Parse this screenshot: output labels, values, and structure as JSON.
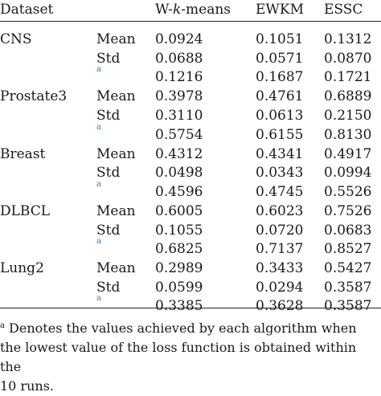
{
  "table": {
    "headers": {
      "dataset": "Dataset",
      "col1": "W-k-means",
      "col2": "EWKM",
      "col3": "ESSC"
    },
    "header_parts": {
      "w": "W-",
      "k": "k",
      "means": "-means"
    },
    "groups": [
      {
        "name": "CNS",
        "rows": [
          {
            "stat": "Mean",
            "sup": "",
            "values": [
              "0.0924",
              "0.1051",
              "0.1312"
            ]
          },
          {
            "stat": "Std",
            "sup": "",
            "values": [
              "0.0688",
              "0.0571",
              "0.0870"
            ]
          },
          {
            "stat": "",
            "sup": "a",
            "values": [
              "0.1216",
              "0.1687",
              "0.1721"
            ]
          }
        ]
      },
      {
        "name": "Prostate3",
        "rows": [
          {
            "stat": "Mean",
            "sup": "",
            "values": [
              "0.3978",
              "0.4761",
              "0.6889"
            ]
          },
          {
            "stat": "Std",
            "sup": "",
            "values": [
              "0.3110",
              "0.0613",
              "0.2150"
            ]
          },
          {
            "stat": "",
            "sup": "a",
            "values": [
              "0.5754",
              "0.6155",
              "0.8130"
            ]
          }
        ]
      },
      {
        "name": "Breast",
        "rows": [
          {
            "stat": "Mean",
            "sup": "",
            "values": [
              "0.4312",
              "0.4341",
              "0.4917"
            ]
          },
          {
            "stat": "Std",
            "sup": "",
            "values": [
              "0.0498",
              "0.0343",
              "0.0994"
            ]
          },
          {
            "stat": "",
            "sup": "a",
            "values": [
              "0.4596",
              "0.4745",
              "0.5526"
            ]
          }
        ]
      },
      {
        "name": "DLBCL",
        "rows": [
          {
            "stat": "Mean",
            "sup": "",
            "values": [
              "0.6005",
              "0.6023",
              "0.7526"
            ]
          },
          {
            "stat": "Std",
            "sup": "",
            "values": [
              "0.1055",
              "0.0720",
              "0.0683"
            ]
          },
          {
            "stat": "",
            "sup": "a",
            "values": [
              "0.6825",
              "0.7137",
              "0.8527"
            ]
          }
        ]
      },
      {
        "name": "Lung2",
        "rows": [
          {
            "stat": "Mean",
            "sup": "",
            "values": [
              "0.2989",
              "0.3433",
              "0.5427"
            ]
          },
          {
            "stat": "Std",
            "sup": "",
            "values": [
              "0.0599",
              "0.0294",
              "0.3587"
            ]
          },
          {
            "stat": "",
            "sup": "a",
            "values": [
              "0.3385",
              "0.3628",
              "0.3587"
            ]
          }
        ]
      }
    ]
  },
  "footnote": {
    "marker": "a",
    "lines": [
      " Denotes the values achieved by each algorithm when",
      "the lowest value of the loss function is obtained within the",
      "10 runs."
    ]
  }
}
